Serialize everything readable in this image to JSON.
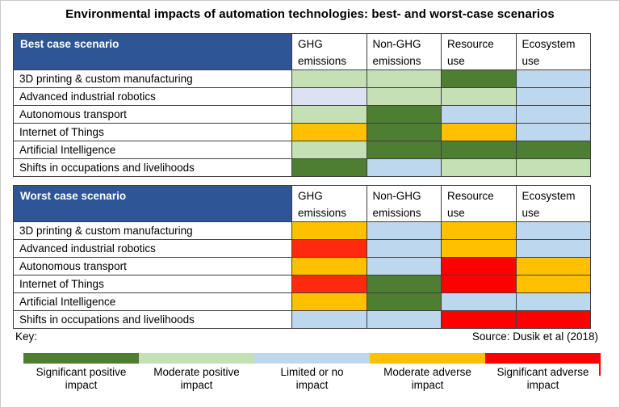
{
  "title": "Environmental impacts of automation technologies: best- and worst-case scenarios",
  "key_label": "Key:",
  "source": "Source: Dusik et al (2018)",
  "colors": {
    "scenario_header_bg": "#2e5596",
    "scenario_header_text": "#ffffff",
    "grid_border": "#3f3f3f",
    "legend_tick": "#ff0000"
  },
  "chart_data": {
    "type": "heatmap",
    "title": "Environmental impacts of automation technologies: best- and worst-case scenarios",
    "columns": [
      {
        "line1": "GHG",
        "line2": "emissions"
      },
      {
        "line1": "Non-GHG",
        "line2": "emissions"
      },
      {
        "line1": "Resource",
        "line2": "use"
      },
      {
        "line1": "Ecosystem",
        "line2": "use"
      }
    ],
    "technologies": [
      "3D printing & custom manufacturing",
      "Advanced industrial robotics",
      "Autonomous transport",
      "Internet of Things",
      "Artificial Intelligence",
      "Shifts in occupations and livelihoods"
    ],
    "impact_scale": [
      {
        "id": "sig_pos",
        "label": "Significant positive impact",
        "color": "#4e7e31"
      },
      {
        "id": "mod_pos",
        "label": "Moderate positive impact",
        "color": "#c5e0b4"
      },
      {
        "id": "limited",
        "label": "Limited or no impact",
        "color": "#bdd7ee"
      },
      {
        "id": "mod_adv",
        "label": "Moderate adverse impact",
        "color": "#ffc000"
      },
      {
        "id": "sig_adv",
        "label": "Significant adverse impact",
        "color": "#ff0000"
      }
    ],
    "cell_color_overrides": {
      "limited_light": "#dbe3f3",
      "sig_adv_warm": "#ff2a0d"
    },
    "legend_position": "bottom",
    "scenarios": [
      {
        "name": "Best case scenario",
        "values": [
          [
            "mod_pos",
            "mod_pos",
            "sig_pos",
            "limited"
          ],
          [
            "limited_light",
            "mod_pos",
            "mod_pos",
            "limited"
          ],
          [
            "mod_pos",
            "sig_pos",
            "limited",
            "limited"
          ],
          [
            "mod_adv",
            "sig_pos",
            "mod_adv",
            "limited"
          ],
          [
            "mod_pos",
            "sig_pos",
            "sig_pos",
            "sig_pos"
          ],
          [
            "sig_pos",
            "limited",
            "mod_pos",
            "mod_pos"
          ]
        ]
      },
      {
        "name": "Worst case scenario",
        "values": [
          [
            "mod_adv",
            "limited",
            "mod_adv",
            "limited"
          ],
          [
            "sig_adv_warm",
            "limited",
            "mod_adv",
            "limited"
          ],
          [
            "mod_adv",
            "limited",
            "sig_adv",
            "mod_adv"
          ],
          [
            "sig_adv_warm",
            "sig_pos",
            "sig_adv",
            "mod_adv"
          ],
          [
            "mod_adv",
            "sig_pos",
            "limited",
            "limited"
          ],
          [
            "limited",
            "limited",
            "sig_adv",
            "sig_adv"
          ]
        ]
      }
    ]
  }
}
